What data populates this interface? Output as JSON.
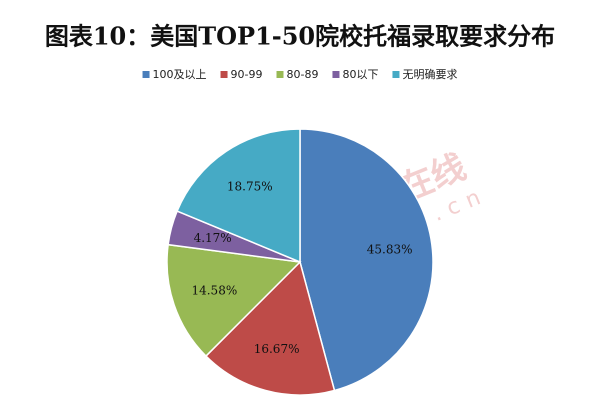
{
  "chart_data": {
    "type": "pie",
    "title": "图表10：美国TOP1-50院校托福录取要求分布",
    "categories": [
      "100及以上",
      "90-99",
      "80-89",
      "80以下",
      "无明确要求"
    ],
    "values": [
      45.83,
      16.67,
      14.58,
      4.17,
      18.75
    ],
    "value_labels": [
      "45.83%",
      "16.67%",
      "14.58%",
      "4.17%",
      "18.75%"
    ],
    "colors": [
      "#4a7ebb",
      "#be4b48",
      "#98b954",
      "#7d60a0",
      "#46aac5"
    ],
    "legend": "top",
    "watermark": [
      "中国教育在线",
      "www.eol.cn"
    ]
  }
}
